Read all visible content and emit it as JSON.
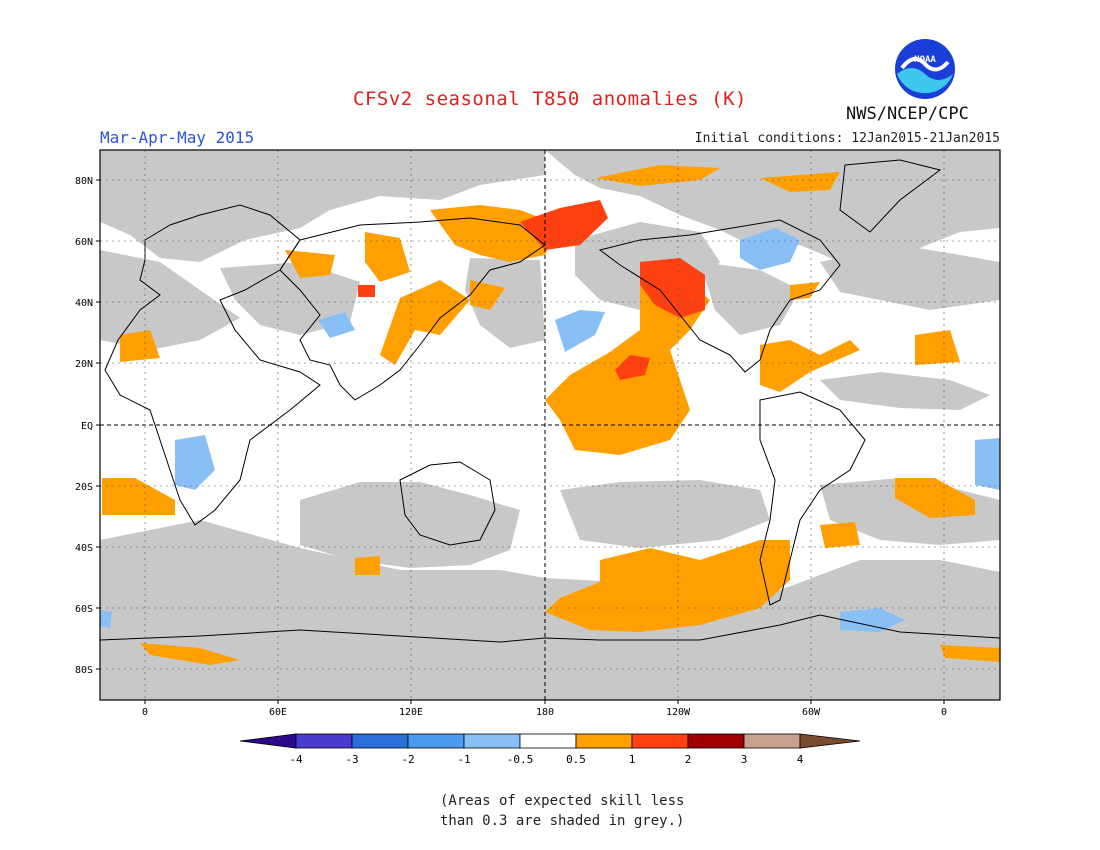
{
  "title": "CFSv2 seasonal T850 anomalies (K)",
  "season": "Mar-Apr-May 2015",
  "initial_conditions": "Initial conditions: 12Jan2015-21Jan2015",
  "org": "NWS/NCEP/CPC",
  "logo_text": "NOAA",
  "note_line1": "(Areas of expected skill less",
  "note_line2": "than 0.3 are shaded in grey.)",
  "axes": {
    "lat_ticks": [
      "80N",
      "60N",
      "40N",
      "20N",
      "EQ",
      "20S",
      "40S",
      "60S",
      "80S"
    ],
    "lon_ticks": [
      "0",
      "60E",
      "120E",
      "180",
      "120W",
      "60W",
      "0"
    ]
  },
  "legend": {
    "labels": [
      "-4",
      "-3",
      "-2",
      "-1",
      "-0.5",
      "0.5",
      "1",
      "2",
      "3",
      "4"
    ],
    "colors": [
      "#2a0a8a",
      "#4a3ad0",
      "#2a6fd8",
      "#4a9af0",
      "#88c0f5",
      "#ffffff",
      "#ffa000",
      "#ff4010",
      "#a00000",
      "#c8a090",
      "#7a4a30"
    ]
  },
  "colors": {
    "grey_low_skill": "#c8c8c8",
    "warm_0_5_to_1": "#ffa000",
    "warm_1_to_2": "#ff4010",
    "cool_minus1_to_minus0_5": "#88c0f5",
    "title": "#e02020",
    "season": "#2a55d8"
  }
}
